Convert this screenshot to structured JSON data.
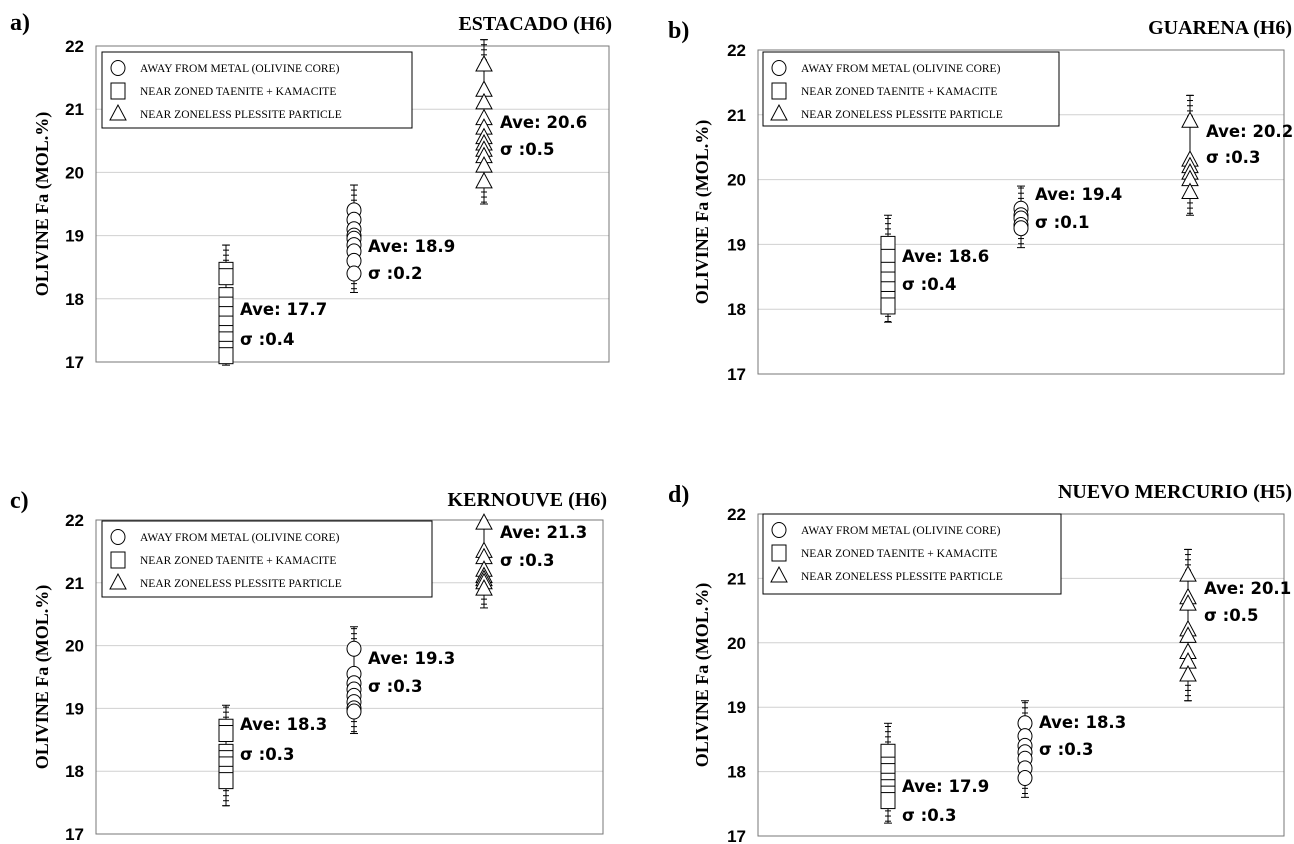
{
  "chart_data": [
    {
      "type": "scatter",
      "panel": "a)",
      "title": "ESTACADO (H6)",
      "ylabel": "OLIVINE Fa (MOL.%)",
      "ylim": [
        17,
        22
      ],
      "yticks": [
        "17",
        "18",
        "19",
        "20",
        "21",
        "22"
      ],
      "grid": true,
      "legend": [
        "AWAY FROM METAL (OLIVINE CORE)",
        "NEAR ZONED TAENITE + KAMACITE",
        "NEAR ZONELESS PLESSITE PARTICLE"
      ],
      "legend_position": "top-left",
      "series": [
        {
          "marker": "square",
          "values": [
            18.45,
            18.35,
            18.05,
            17.9,
            17.75,
            17.6,
            17.45,
            17.35,
            17.2,
            17.1
          ],
          "error_range": [
            16.95,
            18.85
          ],
          "annotation": {
            "ave": "Ave: 17.7",
            "sigma": "σ :0.4"
          }
        },
        {
          "marker": "circle",
          "values": [
            19.4,
            19.25,
            19.1,
            19.0,
            18.95,
            18.85,
            18.75,
            18.6,
            18.4
          ],
          "error_range": [
            18.1,
            19.8
          ],
          "annotation": {
            "ave": "Ave: 18.9",
            "sigma": "σ :0.2"
          }
        },
        {
          "marker": "triangle",
          "values": [
            21.7,
            21.3,
            21.1,
            20.85,
            20.7,
            20.55,
            20.45,
            20.35,
            20.25,
            20.1,
            19.85
          ],
          "error_range": [
            19.5,
            22.1
          ],
          "annotation": {
            "ave": "Ave: 20.6",
            "sigma": "σ :0.5"
          }
        }
      ]
    },
    {
      "type": "scatter",
      "panel": "b)",
      "title": "GUARENA (H6)",
      "ylabel": "OLIVINE Fa (MOL.%)",
      "ylim": [
        17,
        22
      ],
      "yticks": [
        "17",
        "18",
        "19",
        "20",
        "21",
        "22"
      ],
      "grid": true,
      "legend": [
        "AWAY FROM METAL (OLIVINE CORE)",
        "NEAR ZONED TAENITE + KAMACITE",
        "NEAR ZONELESS PLESSITE PARTICLE"
      ],
      "legend_position": "top-left",
      "series": [
        {
          "marker": "square",
          "values": [
            19.0,
            18.8,
            18.6,
            18.45,
            18.3,
            18.15,
            18.05
          ],
          "error_range": [
            17.8,
            19.45
          ],
          "annotation": {
            "ave": "Ave: 18.6",
            "sigma": "σ :0.4"
          }
        },
        {
          "marker": "circle",
          "values": [
            19.55,
            19.45,
            19.4,
            19.3,
            19.25
          ],
          "error_range": [
            18.95,
            19.9
          ],
          "annotation": {
            "ave": "Ave: 19.4",
            "sigma": "σ :0.1"
          }
        },
        {
          "marker": "triangle",
          "values": [
            20.9,
            20.3,
            20.2,
            20.1,
            20.0,
            19.8
          ],
          "error_range": [
            19.45,
            21.3
          ],
          "annotation": {
            "ave": "Ave: 20.2",
            "sigma": "σ :0.3"
          }
        }
      ]
    },
    {
      "type": "scatter",
      "panel": "c)",
      "title": "KERNOUVE (H6)",
      "ylabel": "OLIVINE Fa (MOL.%)",
      "ylim": [
        17,
        22
      ],
      "yticks": [
        "17",
        "18",
        "19",
        "20",
        "21",
        "22"
      ],
      "grid": true,
      "legend": [
        "AWAY FROM METAL (OLIVINE CORE)",
        "NEAR ZONED TAENITE + KAMACITE",
        "NEAR ZONELESS PLESSITE PARTICLE"
      ],
      "legend_position": "top-left",
      "series": [
        {
          "marker": "square",
          "values": [
            18.7,
            18.6,
            18.3,
            18.2,
            18.1,
            17.95,
            17.85
          ],
          "error_range": [
            17.45,
            19.05
          ],
          "annotation": {
            "ave": "Ave: 18.3",
            "sigma": "σ :0.3"
          }
        },
        {
          "marker": "circle",
          "values": [
            19.95,
            19.55,
            19.4,
            19.3,
            19.2,
            19.1,
            19.0,
            18.95
          ],
          "error_range": [
            18.6,
            20.3
          ],
          "annotation": {
            "ave": "Ave: 19.3",
            "sigma": "σ :0.3"
          }
        },
        {
          "marker": "triangle",
          "values": [
            21.95,
            21.5,
            21.4,
            21.2,
            21.1,
            21.05,
            21.0,
            20.9
          ],
          "error_range": [
            20.6,
            22.0
          ],
          "annotation": {
            "ave": "Ave: 21.3",
            "sigma": "σ :0.3"
          }
        }
      ]
    },
    {
      "type": "scatter",
      "panel": "d)",
      "title": "NUEVO MERCURIO (H5)",
      "ylabel": "OLIVINE Fa (MOL.%)",
      "ylim": [
        17,
        22
      ],
      "yticks": [
        "17",
        "18",
        "19",
        "20",
        "21",
        "22"
      ],
      "grid": true,
      "legend": [
        "AWAY FROM METAL (OLIVINE CORE)",
        "NEAR ZONED TAENITE + KAMACITE",
        "NEAR ZONELESS PLESSITE PARTICLE"
      ],
      "legend_position": "top-left",
      "series": [
        {
          "marker": "square",
          "values": [
            18.3,
            18.1,
            18.0,
            17.85,
            17.75,
            17.65,
            17.55
          ],
          "error_range": [
            17.2,
            18.75
          ],
          "annotation": {
            "ave": "Ave: 17.9",
            "sigma": "σ :0.3"
          }
        },
        {
          "marker": "circle",
          "values": [
            18.75,
            18.55,
            18.4,
            18.3,
            18.2,
            18.05,
            17.9
          ],
          "error_range": [
            17.6,
            19.1
          ],
          "annotation": {
            "ave": "Ave: 18.3",
            "sigma": "σ :0.3"
          }
        },
        {
          "marker": "triangle",
          "values": [
            21.05,
            20.7,
            20.6,
            20.2,
            20.1,
            19.85,
            19.7,
            19.5
          ],
          "error_range": [
            19.1,
            21.45
          ],
          "annotation": {
            "ave": "Ave: 20.1",
            "sigma": "σ :0.5"
          }
        }
      ]
    }
  ]
}
